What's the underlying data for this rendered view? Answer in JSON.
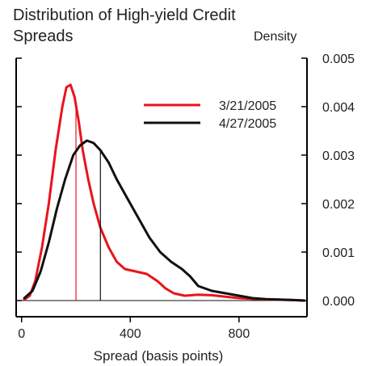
{
  "chart_data": {
    "type": "line",
    "title": "Distribution of High-yield Credit\nSpreads",
    "xlabel": "Spread (basis points)",
    "ylabel": "Density",
    "xlim": [
      -20,
      1050
    ],
    "ylim": [
      0,
      0.005
    ],
    "x_ticks": [
      0,
      400,
      800
    ],
    "x_tick_labels": [
      "0",
      "400",
      "800"
    ],
    "y_ticks": [
      0,
      0.001,
      0.002,
      0.003,
      0.004,
      0.005
    ],
    "y_tick_labels": [
      "0.000",
      "0.001",
      "0.002",
      "0.003",
      "0.004",
      "0.005"
    ],
    "y_axis_side": "right",
    "legend_position": "top-right",
    "series": [
      {
        "name": "3/21/2005",
        "color": "#e8141b",
        "marker_x": 200,
        "points": [
          [
            10,
            2e-05
          ],
          [
            30,
            0.0001
          ],
          [
            50,
            0.0004
          ],
          [
            75,
            0.0011
          ],
          [
            100,
            0.002
          ],
          [
            125,
            0.0031
          ],
          [
            150,
            0.004
          ],
          [
            165,
            0.0044
          ],
          [
            180,
            0.00445
          ],
          [
            195,
            0.0042
          ],
          [
            210,
            0.0037
          ],
          [
            225,
            0.0031
          ],
          [
            245,
            0.0025
          ],
          [
            265,
            0.002
          ],
          [
            290,
            0.0015
          ],
          [
            320,
            0.0011
          ],
          [
            350,
            0.0008
          ],
          [
            380,
            0.00065
          ],
          [
            420,
            0.0006
          ],
          [
            460,
            0.00055
          ],
          [
            500,
            0.0004
          ],
          [
            530,
            0.00025
          ],
          [
            560,
            0.00015
          ],
          [
            600,
            0.0001
          ],
          [
            650,
            0.00012
          ],
          [
            700,
            0.00011
          ],
          [
            750,
            8e-05
          ],
          [
            800,
            5e-05
          ],
          [
            900,
            2e-05
          ],
          [
            1000,
            1e-05
          ],
          [
            1040,
            0.0
          ]
        ]
      },
      {
        "name": "4/27/2005",
        "color": "#111111",
        "marker_x": 290,
        "points": [
          [
            10,
            5e-05
          ],
          [
            40,
            0.0002
          ],
          [
            70,
            0.0006
          ],
          [
            100,
            0.0012
          ],
          [
            130,
            0.0019
          ],
          [
            160,
            0.0025
          ],
          [
            190,
            0.003
          ],
          [
            215,
            0.0032
          ],
          [
            240,
            0.0033
          ],
          [
            265,
            0.00325
          ],
          [
            290,
            0.0031
          ],
          [
            320,
            0.00285
          ],
          [
            350,
            0.0025
          ],
          [
            390,
            0.0021
          ],
          [
            430,
            0.0017
          ],
          [
            470,
            0.0013
          ],
          [
            510,
            0.001
          ],
          [
            550,
            0.0008
          ],
          [
            590,
            0.00065
          ],
          [
            620,
            0.0005
          ],
          [
            650,
            0.0003
          ],
          [
            700,
            0.0002
          ],
          [
            750,
            0.00015
          ],
          [
            800,
            0.0001
          ],
          [
            850,
            5e-05
          ],
          [
            900,
            3e-05
          ],
          [
            950,
            2e-05
          ],
          [
            1000,
            1e-05
          ],
          [
            1040,
            0.0
          ]
        ]
      }
    ]
  }
}
